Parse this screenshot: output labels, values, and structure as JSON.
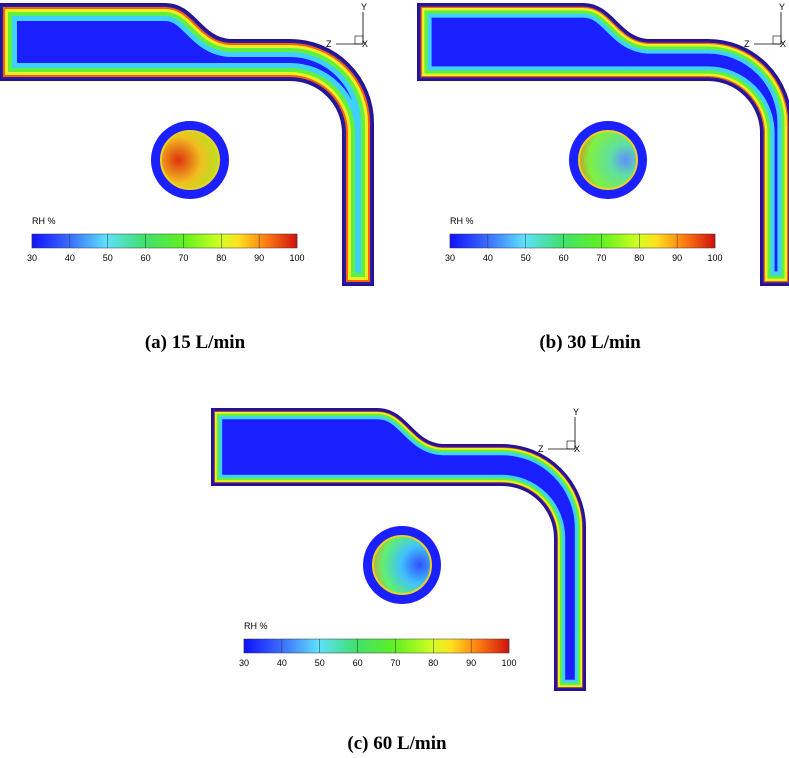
{
  "panels": [
    {
      "caption": "(a) 15 L/min",
      "colorbar_label": "RH  %",
      "colorbar_ticks": [
        30,
        40,
        50,
        60,
        70,
        80,
        90,
        100
      ],
      "axes": {
        "y": "Y",
        "z": "Z",
        "x": "X"
      }
    },
    {
      "caption": "(b) 30 L/min",
      "colorbar_label": "RH  %",
      "colorbar_ticks": [
        30,
        40,
        50,
        60,
        70,
        80,
        90,
        100
      ],
      "axes": {
        "y": "Y",
        "z": "Z",
        "x": "X"
      }
    },
    {
      "caption": "(c) 60 L/min",
      "colorbar_label": "RH  %",
      "colorbar_ticks": [
        30,
        40,
        50,
        60,
        70,
        80,
        90,
        100
      ],
      "axes": {
        "y": "Y",
        "z": "Z",
        "x": "X"
      }
    }
  ]
}
